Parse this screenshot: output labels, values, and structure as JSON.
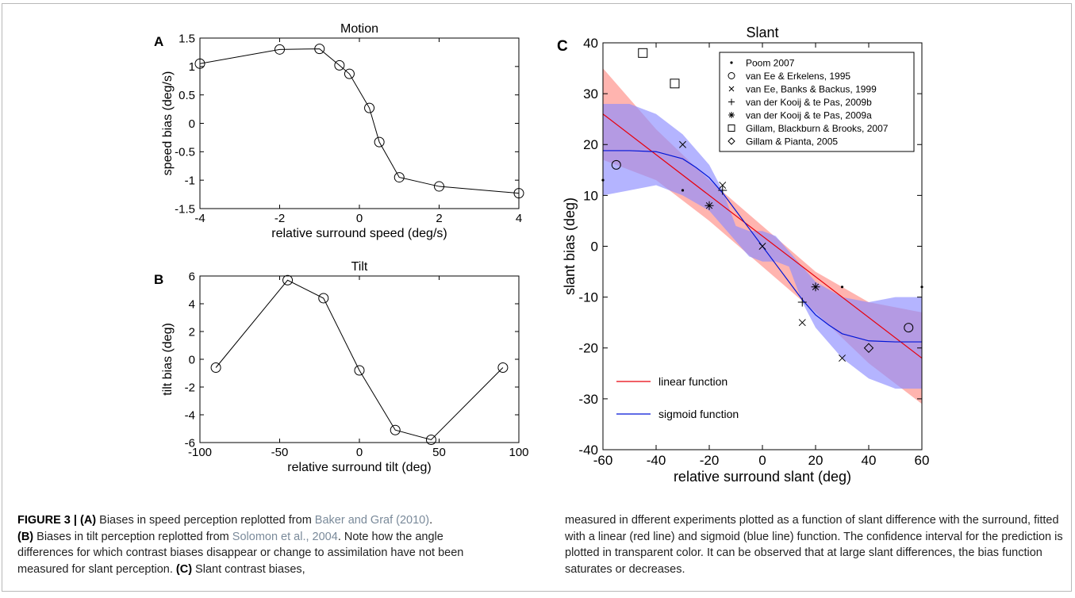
{
  "chart_data": [
    {
      "panel": "A",
      "type": "line",
      "title": "Motion",
      "xlabel": "relative surround speed (deg/s)",
      "ylabel": "speed bias (deg/s)",
      "xlim": [
        -4,
        4
      ],
      "ylim": [
        -1.5,
        1.5
      ],
      "xticks": [
        -4,
        -2,
        0,
        2,
        4
      ],
      "yticks": [
        -1.5,
        -1,
        -0.5,
        0,
        0.5,
        1,
        1.5
      ],
      "ytick_labels": [
        "-1.5",
        "-1",
        "-0.5",
        "0",
        "0.5",
        "1",
        "1.5"
      ],
      "x": [
        -4,
        -2,
        -1,
        -0.5,
        -0.25,
        0.25,
        0.5,
        1,
        2,
        4
      ],
      "y": [
        1.05,
        1.3,
        1.31,
        1.02,
        0.87,
        0.27,
        -0.33,
        -0.95,
        -1.11,
        -1.23
      ],
      "marker": "circle"
    },
    {
      "panel": "B",
      "type": "line",
      "title": "Tilt",
      "xlabel": "relative surround tilt (deg)",
      "ylabel": "tilt bias (deg)",
      "xlim": [
        -100,
        100
      ],
      "ylim": [
        -6,
        6
      ],
      "xticks": [
        -100,
        -50,
        0,
        50,
        100
      ],
      "yticks": [
        -6,
        -4,
        -2,
        0,
        2,
        4,
        6
      ],
      "x": [
        -90,
        -45,
        -22.5,
        0,
        22.5,
        45,
        90
      ],
      "y": [
        -0.6,
        5.7,
        4.4,
        -0.8,
        -5.1,
        -5.8,
        -0.6
      ],
      "marker": "circle"
    },
    {
      "panel": "C",
      "type": "scatter",
      "title": "Slant",
      "xlabel": "relative surround slant (deg)",
      "ylabel": "slant bias (deg)",
      "xlim": [
        -60,
        60
      ],
      "ylim": [
        -40,
        40
      ],
      "xticks": [
        -60,
        -40,
        -20,
        0,
        20,
        40,
        60
      ],
      "yticks": [
        -40,
        -30,
        -20,
        -10,
        0,
        10,
        20,
        30,
        40
      ],
      "legend_position": "top-right",
      "series": [
        {
          "name": "Poom 2007",
          "marker": "dot",
          "x": [
            -60,
            -30,
            30,
            60
          ],
          "y": [
            13,
            11,
            -8,
            -8
          ]
        },
        {
          "name": "van Ee & Erkelens, 1995",
          "marker": "circle",
          "x": [
            -55,
            55
          ],
          "y": [
            16,
            -16
          ]
        },
        {
          "name": "van Ee, Banks & Backus, 1999",
          "marker": "x",
          "x": [
            -30,
            -15,
            0,
            15,
            30
          ],
          "y": [
            20,
            12,
            0,
            -15,
            -22
          ]
        },
        {
          "name": "van der Kooij & te Pas, 2009b",
          "marker": "plus",
          "x": [
            -15,
            15
          ],
          "y": [
            11,
            -11
          ]
        },
        {
          "name": "van der Kooij & te Pas, 2009a",
          "marker": "star",
          "x": [
            -20,
            20
          ],
          "y": [
            8,
            -8
          ]
        },
        {
          "name": "Gillam, Blackburn & Brooks, 2007",
          "marker": "square",
          "x": [
            -45,
            -33
          ],
          "y": [
            38,
            32
          ]
        },
        {
          "name": "Gillam & Pianta, 2005",
          "marker": "diamond",
          "x": [
            40
          ],
          "y": [
            -20
          ]
        }
      ],
      "fits": [
        {
          "name": "linear function",
          "color": "#e8000b",
          "band_color": "#ff8c84",
          "x": [
            -60,
            60
          ],
          "y": [
            26,
            -22
          ],
          "band_x": [
            -60,
            -40,
            -20,
            0,
            20,
            40,
            60
          ],
          "band_upper": [
            35,
            23,
            13,
            4,
            -5,
            -11,
            -13
          ],
          "band_lower": [
            17,
            13,
            5,
            -4,
            -13,
            -23,
            -31
          ]
        },
        {
          "name": "sigmoid function",
          "color": "#0015d6",
          "band_color": "#8c8cff",
          "x": [
            -60,
            -50,
            -40,
            -30,
            -25,
            -20,
            -15,
            -10,
            -5,
            0,
            5,
            10,
            15,
            20,
            25,
            30,
            40,
            50,
            60
          ],
          "y": [
            18.8,
            18.8,
            18.6,
            17.2,
            15.5,
            13.5,
            10.5,
            7,
            3.5,
            0,
            -3.5,
            -7,
            -10.5,
            -13.5,
            -15.5,
            -17.2,
            -18.6,
            -18.8,
            -18.8
          ],
          "band_x": [
            -60,
            -50,
            -40,
            -30,
            -20,
            -15,
            -10,
            -5,
            0,
            5,
            10,
            15,
            20,
            30,
            40,
            50,
            60
          ],
          "band_upper": [
            28,
            28,
            26,
            22,
            16,
            11,
            4,
            3,
            3,
            2,
            -1,
            -4,
            -7,
            -10,
            -11,
            -10,
            -10
          ],
          "band_lower": [
            10,
            11,
            12,
            10,
            7,
            4,
            1,
            -2,
            -3,
            -3,
            -4,
            -11,
            -16,
            -22,
            -26,
            -28,
            -28
          ]
        }
      ]
    }
  ],
  "panel_labels": [
    "A",
    "B",
    "C"
  ],
  "caption": {
    "left": {
      "fig_label": "FIGURE 3 | ",
      "a_label": "(A)",
      "a_text": " Biases in speed perception replotted from ",
      "a_cite": "Baker and Graf (2010)",
      "a_end": ".",
      "b_label": "(B)",
      "b_text": " Biases in tilt perception replotted from ",
      "b_cite": "Solomon et al., 2004",
      "b_end": ". Note how the angle differences for which contrast biases disappear or change to assimilation have not been measured for slant perception. ",
      "c_label": "(C)",
      "c_text": " Slant contrast biases,"
    },
    "right": "measured in dfferent experiments plotted as a function of slant difference with the surround, fitted with a linear (red line) and sigmoid (blue line) function. The confidence interval for the prediction is plotted in transparent color. It can be observed that at large slant differences, the bias function saturates or decreases."
  }
}
